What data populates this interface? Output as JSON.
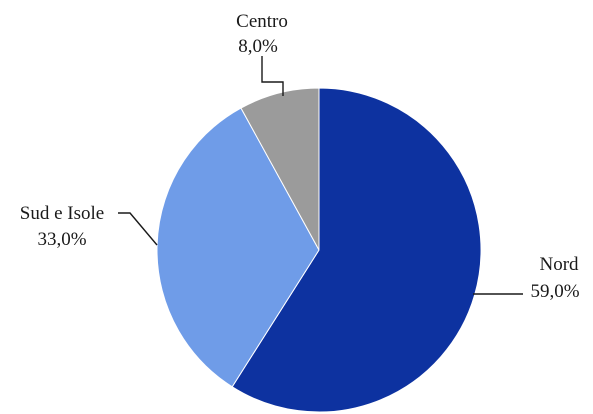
{
  "chart_data": {
    "type": "pie",
    "slices": [
      {
        "name": "Nord",
        "value": 59.0,
        "label": "59,0%",
        "color": "#0d32a0"
      },
      {
        "name": "Sud e Isole",
        "value": 33.0,
        "label": "33,0%",
        "color": "#6f9ce8"
      },
      {
        "name": "Centro",
        "value": 8.0,
        "label": "8,0%",
        "color": "#9b9b9b"
      }
    ],
    "start_angle": "top",
    "direction": "clockwise"
  }
}
